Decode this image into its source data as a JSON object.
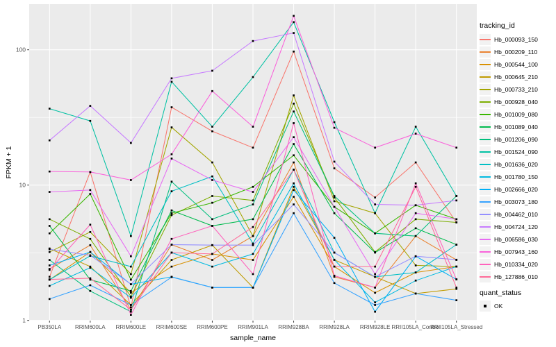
{
  "colors": {
    "panel_bg": "#EBEBEB",
    "grid": "#FFFFFF",
    "tick": "#333333",
    "axis_text": "#4D4D4D",
    "text": "#000000",
    "point": "#000000",
    "legend_key_bg": "#F2F2F2"
  },
  "legend": {
    "tracking_title": "tracking_id",
    "quant_title": "quant_status",
    "quant_ok_label": "OK"
  },
  "chart_data": {
    "type": "line",
    "title": "",
    "xlabel": "sample_name",
    "ylabel": "FPKM + 1",
    "y_scale": "log10",
    "ylim": [
      0.95,
      220
    ],
    "grid": true,
    "legend_position": "right",
    "point_shape": "filled-square",
    "point_color": "#000000",
    "y_ticks": [
      {
        "value": 1,
        "label": "1"
      },
      {
        "value": 10,
        "label": "10"
      },
      {
        "value": 100,
        "label": "100"
      }
    ],
    "y_minor_ticks": [
      3.1623,
      31.623
    ],
    "categories": [
      "PB350LA",
      "RRIM600LA",
      "RRIM600LE",
      "RRIM600SE",
      "RRIM600PE",
      "RRIM901LA",
      "RRIM928BA",
      "RRIM928LA",
      "RRIM928LE",
      "RRII105LA_Control",
      "RRII105LA_Stressed"
    ],
    "series": [
      {
        "name": "Hb_000093_150",
        "color": "#F8766D",
        "values": [
          2.1,
          12.5,
          1.25,
          37.6,
          25,
          18.9,
          97,
          13.3,
          8.1,
          14.7,
          5.3
        ]
      },
      {
        "name": "Hb_000209_110",
        "color": "#EA8331",
        "values": [
          2.4,
          3.6,
          1.2,
          3.63,
          2.8,
          4.2,
          14.7,
          2.1,
          1.75,
          4.2,
          2.8
        ]
      },
      {
        "name": "Hb_000544_100",
        "color": "#D89000",
        "values": [
          2.0,
          3.2,
          1.6,
          2.5,
          3.1,
          2.8,
          8.2,
          2.5,
          1.6,
          2.26,
          2.5
        ]
      },
      {
        "name": "Hb_000645_210",
        "color": "#C09B00",
        "values": [
          3.4,
          2.5,
          1.3,
          2.8,
          3.6,
          1.75,
          9.7,
          2.8,
          2.1,
          1.58,
          1.71
        ]
      },
      {
        "name": "Hb_000733_210",
        "color": "#A3A500",
        "values": [
          3.2,
          4.5,
          2.2,
          26.7,
          14.7,
          4.2,
          46,
          7.6,
          6.2,
          2.55,
          2.5
        ]
      },
      {
        "name": "Hb_000928_040",
        "color": "#7CAE00",
        "values": [
          5.6,
          4.0,
          1.5,
          6.0,
          8.3,
          7.7,
          40,
          8.1,
          3.2,
          5.6,
          5.3
        ]
      },
      {
        "name": "Hb_001009_080",
        "color": "#39B600",
        "values": [
          4.4,
          8.6,
          2.0,
          6.2,
          7.4,
          9.7,
          16.6,
          6.9,
          4.4,
          7.1,
          5.6
        ]
      },
      {
        "name": "Hb_001089_040",
        "color": "#00BB4E",
        "values": [
          5.0,
          2.0,
          1.65,
          6.5,
          5.0,
          5.6,
          20.1,
          6.2,
          3.17,
          4.8,
          3.63
        ]
      },
      {
        "name": "Hb_001206_090",
        "color": "#00BF7D",
        "values": [
          2.8,
          1.65,
          1.16,
          10.6,
          5.6,
          7.2,
          35,
          8.3,
          4.4,
          4.2,
          8.3
        ]
      },
      {
        "name": "Hb_001524_090",
        "color": "#00C1A3",
        "values": [
          36.7,
          29.8,
          4.2,
          58,
          27,
          62.8,
          160,
          29.2,
          6.2,
          27,
          8.3
        ]
      },
      {
        "name": "Hb_001636_020",
        "color": "#00BFC4",
        "values": [
          2.0,
          3.0,
          2.5,
          9.0,
          11.6,
          3.7,
          13.0,
          3.17,
          2.1,
          2.26,
          3.63
        ]
      },
      {
        "name": "Hb_001780_150",
        "color": "#00BAE0",
        "values": [
          1.8,
          2.45,
          1.47,
          3.17,
          2.5,
          3.1,
          10.3,
          2.81,
          1.36,
          1.97,
          2.5
        ]
      },
      {
        "name": "Hb_002666_020",
        "color": "#00B0F6",
        "values": [
          2.55,
          3.2,
          1.85,
          2.1,
          1.75,
          1.75,
          9.2,
          4.08,
          1.16,
          2.98,
          2.01
        ]
      },
      {
        "name": "Hb_003073_180",
        "color": "#35A2FF",
        "values": [
          1.44,
          1.82,
          1.3,
          2.09,
          1.75,
          1.75,
          6.2,
          1.89,
          1.3,
          1.58,
          1.41
        ]
      },
      {
        "name": "Hb_004462_010",
        "color": "#9590FF",
        "values": [
          3.36,
          3.03,
          1.85,
          3.63,
          3.6,
          3.6,
          7.2,
          3.17,
          2.1,
          2.98,
          2.81
        ]
      },
      {
        "name": "Hb_004724_120",
        "color": "#C77CFF",
        "values": [
          21.4,
          38.5,
          20.5,
          61.5,
          70,
          116,
          133,
          14.9,
          7.2,
          7.1,
          7.7
        ]
      },
      {
        "name": "Hb_006586_030",
        "color": "#E76BF3",
        "values": [
          8.9,
          9.2,
          2.98,
          15.7,
          10.9,
          8.9,
          22.6,
          6.9,
          2.2,
          6.2,
          5.6
        ]
      },
      {
        "name": "Hb_007943_160",
        "color": "#FA62DB",
        "values": [
          12.6,
          12.5,
          10.9,
          16.9,
          49.5,
          27,
          178,
          26.5,
          18.9,
          24,
          18.9
        ]
      },
      {
        "name": "Hb_010334_020",
        "color": "#FF62BC",
        "values": [
          2.36,
          5.1,
          1.1,
          4.0,
          5.0,
          2.2,
          28.7,
          2.14,
          1.75,
          10.3,
          2.01
        ]
      },
      {
        "name": "Hb_127886_010",
        "color": "#FF6A98",
        "values": [
          2.01,
          2.05,
          1.2,
          3.17,
          3.1,
          4.9,
          13.0,
          2.5,
          2.5,
          9.7,
          1.75
        ]
      }
    ]
  }
}
